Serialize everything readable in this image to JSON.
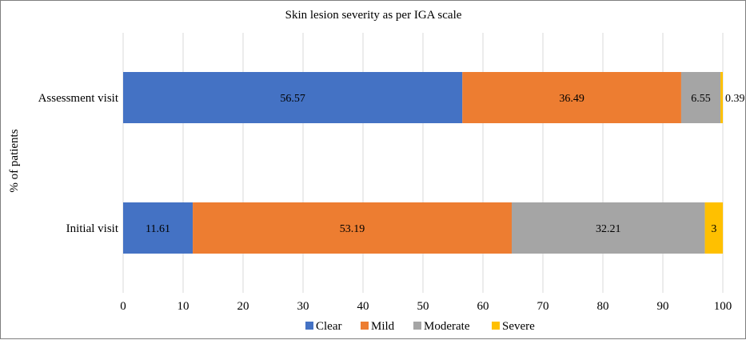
{
  "chart_data": {
    "type": "bar",
    "orientation": "horizontal",
    "stacked": true,
    "title": "Skin lesion severity as per IGA scale",
    "ylabel": "% of patients",
    "xlabel": "",
    "xlim": [
      0,
      100
    ],
    "xticks": [
      "0",
      "10",
      "20",
      "30",
      "40",
      "50",
      "60",
      "70",
      "80",
      "90",
      "100"
    ],
    "grid": "vertical",
    "legend_position": "bottom",
    "categories": [
      "Assessment visit",
      "Initial visit"
    ],
    "series": [
      {
        "name": "Clear",
        "color": "#4472C4",
        "values": [
          56.57,
          11.61
        ],
        "labels": [
          "56.57",
          "11.61"
        ]
      },
      {
        "name": "Mild",
        "color": "#ED7D31",
        "values": [
          36.49,
          53.19
        ],
        "labels": [
          "36.49",
          "53.19"
        ]
      },
      {
        "name": "Moderate",
        "color": "#A5A5A5",
        "values": [
          6.55,
          32.21
        ],
        "labels": [
          "6.55",
          "32.21"
        ]
      },
      {
        "name": "Severe",
        "color": "#FFC000",
        "values": [
          0.39,
          3
        ],
        "labels": [
          "0.39",
          "3"
        ]
      }
    ]
  }
}
